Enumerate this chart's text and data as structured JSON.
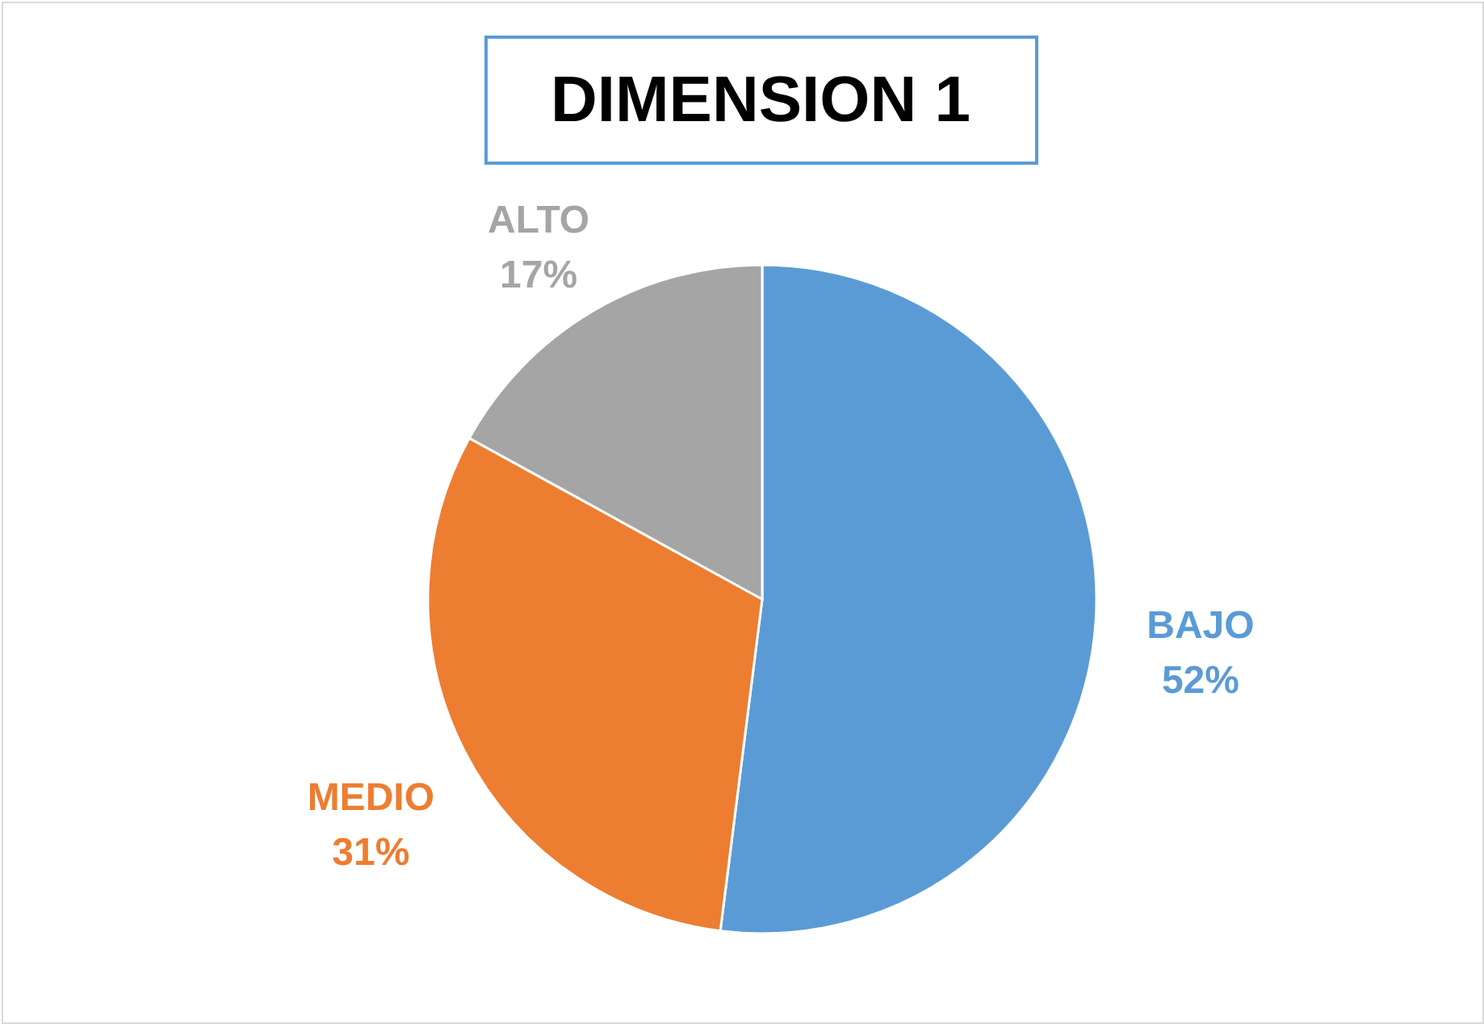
{
  "chart_data": {
    "type": "pie",
    "title": "DIMENSION 1",
    "categories": [
      "BAJO",
      "MEDIO",
      "ALTO"
    ],
    "values": [
      52,
      31,
      17
    ],
    "value_labels": [
      "52%",
      "31%",
      "17%"
    ],
    "colors": [
      "#5b9bd5",
      "#ed7d31",
      "#a5a5a5"
    ]
  }
}
